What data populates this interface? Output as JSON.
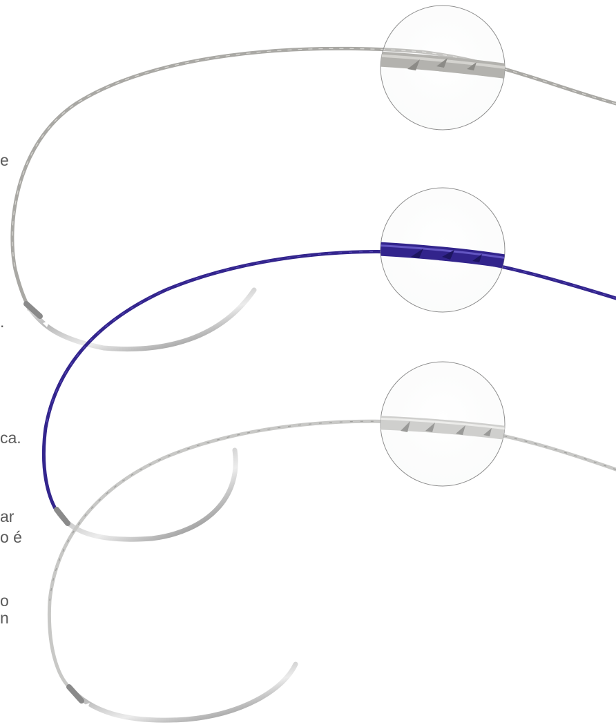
{
  "text_fragments": [
    {
      "id": "frag-1",
      "text": "e"
    },
    {
      "id": "frag-2",
      "text": "."
    },
    {
      "id": "frag-3",
      "text": "ca."
    },
    {
      "id": "frag-4",
      "text": "ar"
    },
    {
      "id": "frag-5",
      "text": "o é"
    },
    {
      "id": "frag-6",
      "text": "o"
    },
    {
      "id": "frag-7",
      "text": "n"
    }
  ],
  "sutures": [
    {
      "name": "gray-barbed-suture",
      "color": "#a8a7a3",
      "needle": "curved-steel-needle"
    },
    {
      "name": "violet-barbed-suture",
      "color": "#32248c",
      "needle": "curved-steel-needle"
    },
    {
      "name": "clear-barbed-suture",
      "color": "#c9c9c9",
      "needle": "curved-steel-needle"
    }
  ],
  "magnifier_insets": [
    {
      "name": "gray-barb-detail"
    },
    {
      "name": "violet-barb-detail"
    },
    {
      "name": "clear-barb-detail"
    }
  ]
}
